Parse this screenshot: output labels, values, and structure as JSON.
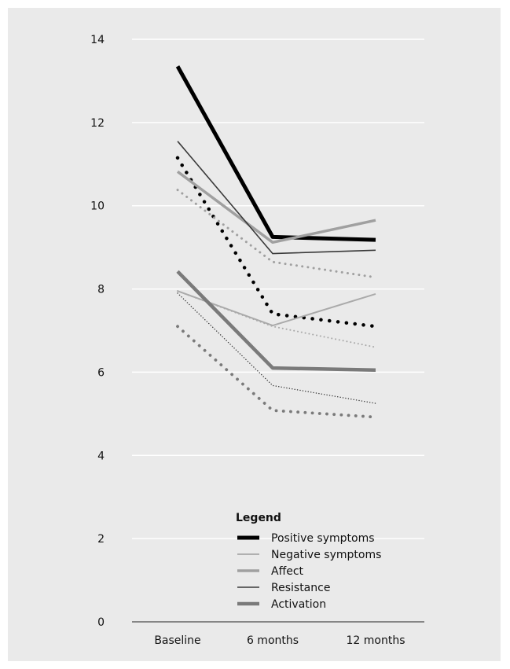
{
  "chart_data": {
    "type": "line",
    "categories": [
      "Baseline",
      "6 months",
      "12 months"
    ],
    "ylim": [
      0,
      14
    ],
    "yticks": [
      0,
      2,
      4,
      6,
      8,
      10,
      12,
      14
    ],
    "grid": true,
    "legend_placement": "bottom-center",
    "legend": {
      "title": "Legend",
      "entries": [
        "Positive symptoms",
        "Negative symptoms",
        "Affect",
        "Resistance",
        "Activation"
      ]
    },
    "series": [
      {
        "name": "Positive symptoms",
        "style": "solid",
        "color": "#000000",
        "values": [
          13.35,
          9.25,
          9.18
        ]
      },
      {
        "style": "dotted",
        "color": "#000000",
        "values": [
          11.15,
          7.4,
          7.1
        ]
      },
      {
        "name": "Negative symptoms",
        "style": "solid",
        "color": "#aaaaaa",
        "values": [
          7.95,
          7.12,
          7.88
        ]
      },
      {
        "style": "dotted",
        "color": "#aaaaaa",
        "values": [
          7.95,
          7.1,
          6.6
        ]
      },
      {
        "name": "Affect",
        "style": "solid",
        "color": "#a0a0a0",
        "values": [
          10.82,
          9.12,
          9.65
        ]
      },
      {
        "style": "dotted",
        "color": "#a0a0a0",
        "values": [
          10.38,
          8.65,
          8.28
        ]
      },
      {
        "name": "Resistance",
        "style": "solid",
        "color": "#3a3a3a",
        "values": [
          11.55,
          8.85,
          8.93
        ]
      },
      {
        "style": "dotted",
        "color": "#3a3a3a",
        "values": [
          7.9,
          5.68,
          5.25
        ]
      },
      {
        "name": "Activation",
        "style": "solid",
        "color": "#7a7a7a",
        "values": [
          8.42,
          6.1,
          6.05
        ]
      },
      {
        "style": "dotted",
        "color": "#7a7a7a",
        "values": [
          7.1,
          5.08,
          4.92
        ]
      }
    ]
  }
}
